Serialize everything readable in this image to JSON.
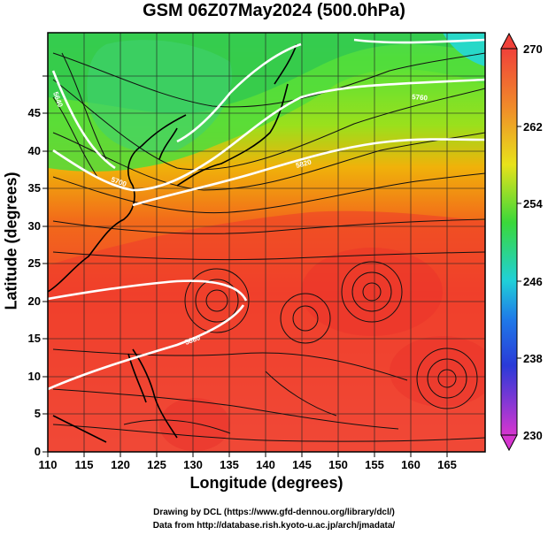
{
  "title": "GSM 06Z07May2024 (500.0hPa)",
  "xlabel": "Longitude (degrees)",
  "ylabel": "Latitude  (degrees)",
  "credit_line1": "Drawing by DCL (https://www.gfd-dennou.org/library/dcl/)",
  "credit_line2": "Data from http://database.rish.kyoto-u.ac.jp/arch/jmadata/",
  "x_ticks": [
    "110",
    "115",
    "120",
    "125",
    "130",
    "135",
    "140",
    "145",
    "150",
    "155",
    "160",
    "165"
  ],
  "y_ticks": [
    "0",
    "5",
    "10",
    "15",
    "20",
    "25",
    "30",
    "35",
    "40",
    "45"
  ],
  "colorbar_ticks": [
    "270",
    "262",
    "254",
    "246",
    "238",
    "230"
  ],
  "contour_labels": [
    "5880",
    "5820",
    "5760",
    "5700",
    "5640"
  ],
  "colors": {
    "warm": "#ef3b2c",
    "mid": "#f7a500",
    "cool": "#2fd12f",
    "cold": "#22d7d7"
  },
  "chart_data": {
    "type": "heatmap",
    "variable_range": [
      230,
      270
    ],
    "xlim": [
      110,
      170
    ],
    "ylim": [
      0,
      50
    ],
    "colorbar_range": [
      230,
      270
    ],
    "colorbar_ticks": [
      230,
      238,
      246,
      254,
      262,
      270
    ],
    "overlays": [
      "streamlines",
      "height contours (white)",
      "coastlines",
      "grid"
    ]
  }
}
